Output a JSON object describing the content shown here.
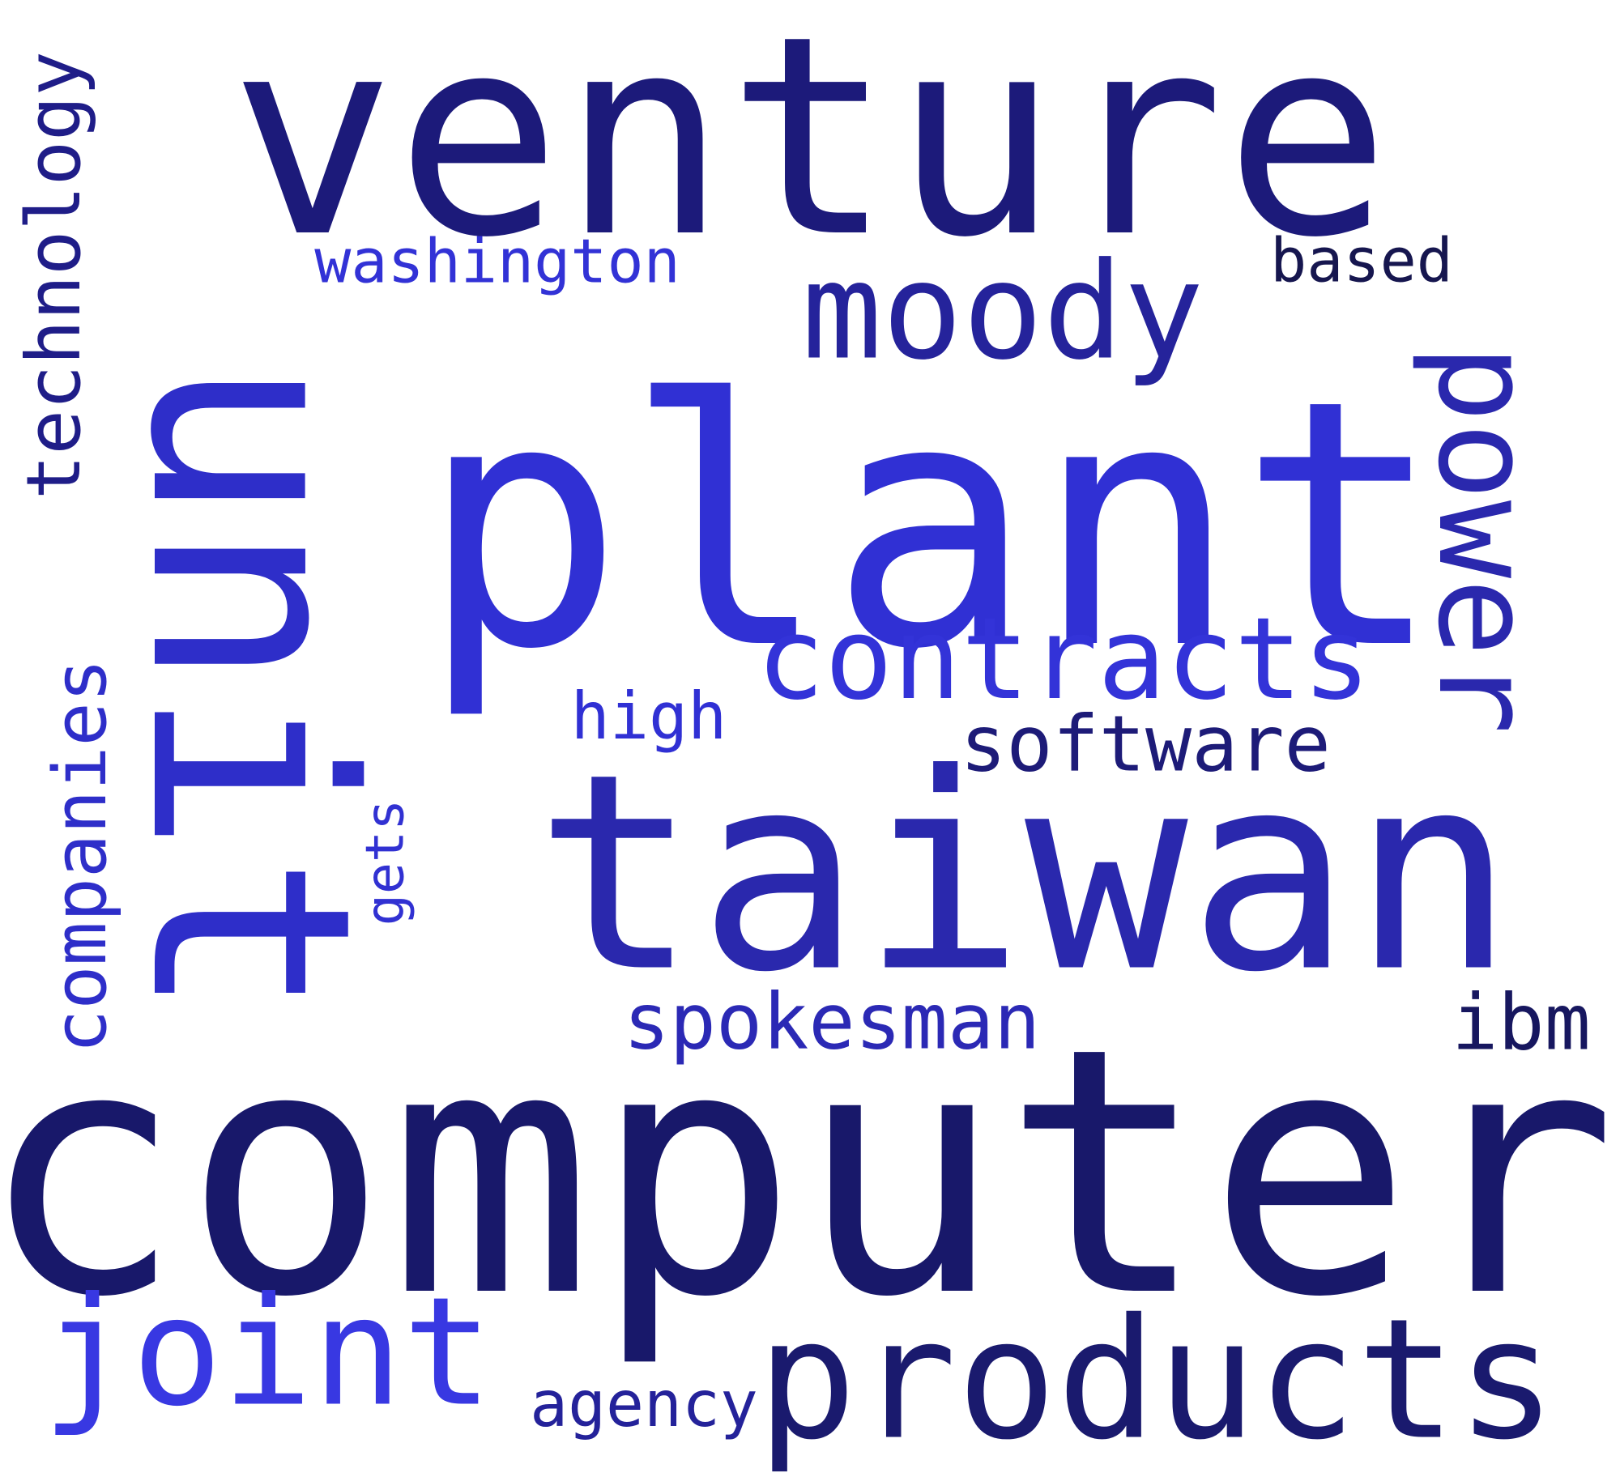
{
  "words": {
    "venture": {
      "text": "venture",
      "color": "#1c1a7a"
    },
    "plant": {
      "text": "plant",
      "color": "#3030d4"
    },
    "taiwan": {
      "text": "taiwan",
      "color": "#2a28ad"
    },
    "computer": {
      "text": "computer",
      "color": "#18186a"
    },
    "unit": {
      "text": "unit",
      "color": "#2e2ec9"
    },
    "products": {
      "text": "products",
      "color": "#1a1a6e"
    },
    "moody": {
      "text": "moody",
      "color": "#25239b"
    },
    "power": {
      "text": "power",
      "color": "#2a28ad"
    },
    "contracts": {
      "text": "contracts",
      "color": "#3333d8"
    },
    "joint": {
      "text": "joint",
      "color": "#3838e2"
    },
    "technology": {
      "text": "technology",
      "color": "#1f1d88"
    },
    "companies": {
      "text": "companies",
      "color": "#2e2ec9"
    },
    "washington": {
      "text": "washington",
      "color": "#3232d6"
    },
    "based": {
      "text": "based",
      "color": "#16164f"
    },
    "software": {
      "text": "software",
      "color": "#1d1b78"
    },
    "high": {
      "text": "high",
      "color": "#3030d4"
    },
    "gets": {
      "text": "gets",
      "color": "#3131d2"
    },
    "spokesman": {
      "text": "spokesman",
      "color": "#2b29b5"
    },
    "ibm": {
      "text": "ibm",
      "color": "#17175f"
    },
    "agency": {
      "text": "agency",
      "color": "#24229a"
    }
  }
}
